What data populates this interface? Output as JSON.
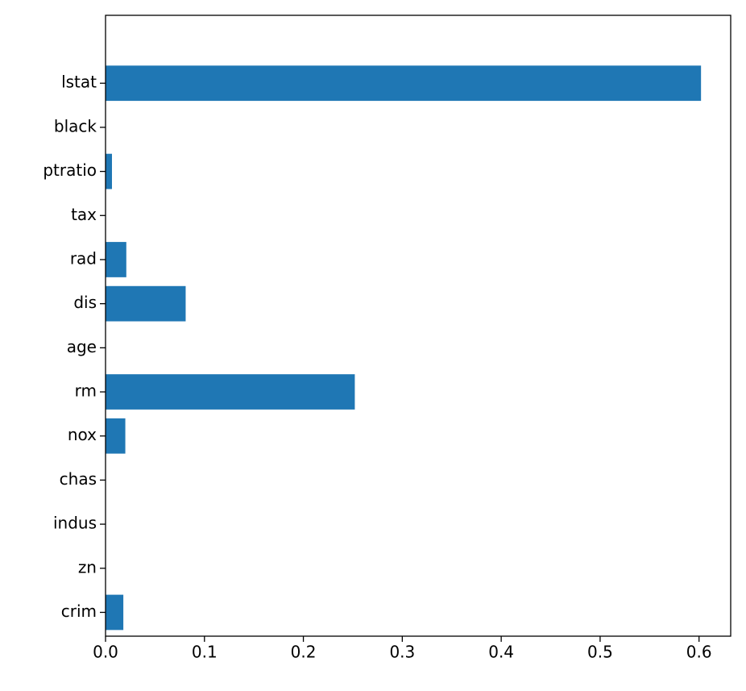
{
  "chart_data": {
    "type": "barh",
    "categories": [
      "crim",
      "zn",
      "indus",
      "chas",
      "nox",
      "rm",
      "age",
      "dis",
      "rad",
      "tax",
      "ptratio",
      "black",
      "lstat"
    ],
    "values": [
      0.018,
      0,
      0,
      0,
      0.02,
      0.252,
      0,
      0.081,
      0.021,
      0,
      0.0065,
      0,
      0.602
    ],
    "color": "#1f77b4",
    "xlim": [
      0,
      0.632
    ],
    "xticks": [
      {
        "value": 0,
        "label": "0.0"
      },
      0.1,
      0.2,
      0.3,
      0.4,
      0.5,
      0.6
    ],
    "grid": false
  }
}
